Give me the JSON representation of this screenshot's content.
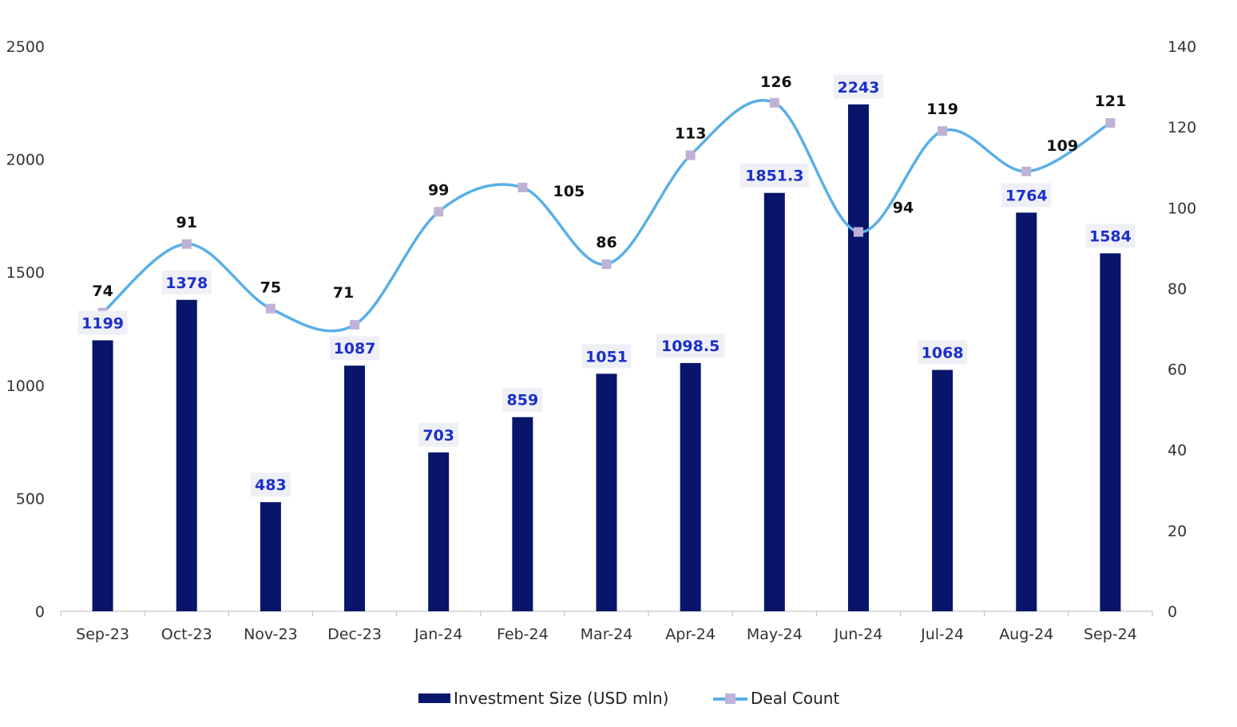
{
  "chart_data": {
    "type": "bar+line",
    "categories": [
      "Sep-23",
      "Oct-23",
      "Nov-23",
      "Dec-23",
      "Jan-24",
      "Feb-24",
      "Mar-24",
      "Apr-24",
      "May-24",
      "Jun-24",
      "Jul-24",
      "Aug-24",
      "Sep-24"
    ],
    "series": [
      {
        "name": "Investment Size (USD mln)",
        "type": "bar",
        "axis": "left",
        "color": "#08156a",
        "values": [
          1199,
          1378,
          483,
          1087,
          703,
          859,
          1051,
          1098.5,
          1851.3,
          2243,
          1068,
          1764,
          1584
        ],
        "labels": [
          "1199",
          "1378",
          "483",
          "1087",
          "703",
          "859",
          "1051",
          "1098.5",
          "1851.3",
          "2243",
          "1068",
          "1764",
          "1584"
        ]
      },
      {
        "name": "Deal Count",
        "type": "line",
        "axis": "right",
        "color": "#5aafe6",
        "marker_color": "#c0b2d6",
        "values": [
          74,
          91,
          75,
          71,
          99,
          105,
          86,
          113,
          126,
          94,
          119,
          109,
          121
        ],
        "labels": [
          "74",
          "91",
          "75",
          "71",
          "99",
          "105",
          "86",
          "113",
          "126",
          "94",
          "119",
          "109",
          "121"
        ]
      }
    ],
    "left_axis": {
      "ylim": [
        0,
        2500
      ],
      "ticks": [
        "0",
        "500",
        "1000",
        "1500",
        "2000",
        "2500"
      ]
    },
    "right_axis": {
      "ylim": [
        0,
        140
      ],
      "ticks": [
        "0",
        "20",
        "40",
        "60",
        "80",
        "100",
        "120",
        "140"
      ]
    },
    "grid": false,
    "legend": "bottom-center"
  }
}
